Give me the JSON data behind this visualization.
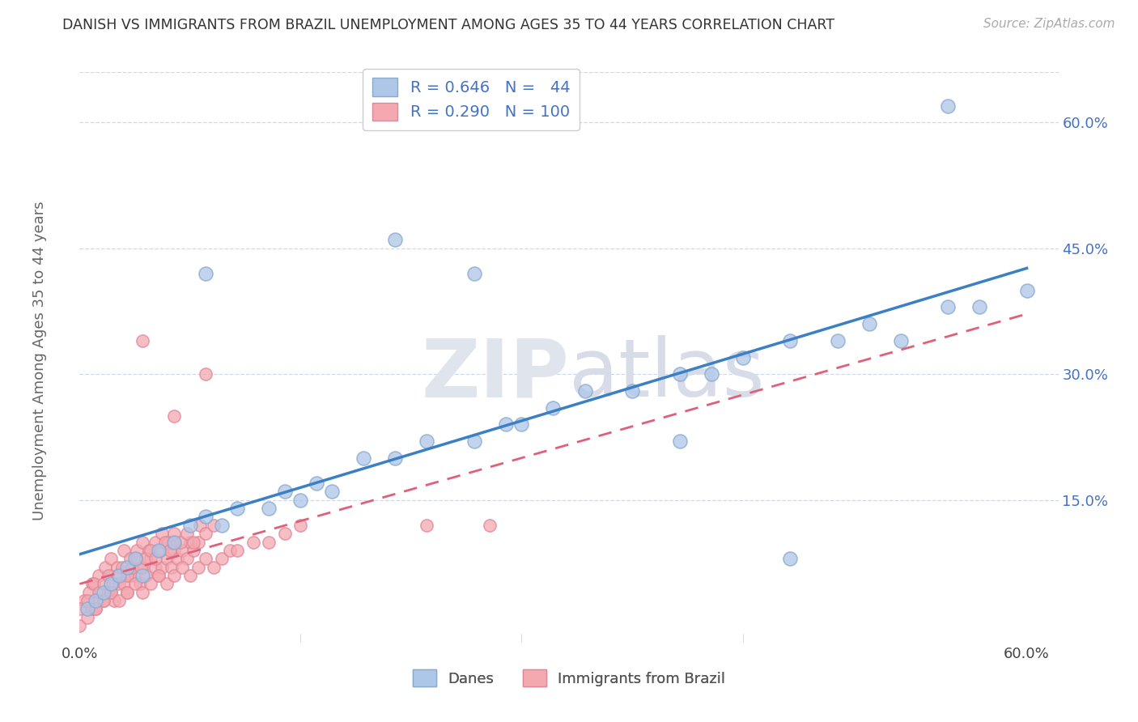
{
  "title": "DANISH VS IMMIGRANTS FROM BRAZIL UNEMPLOYMENT AMONG AGES 35 TO 44 YEARS CORRELATION CHART",
  "source": "Source: ZipAtlas.com",
  "ylabel": "Unemployment Among Ages 35 to 44 years",
  "xlim": [
    0.0,
    0.62
  ],
  "ylim": [
    -0.02,
    0.66
  ],
  "x_ticks": [
    0.0,
    0.6
  ],
  "x_tick_labels": [
    "0.0%",
    "60.0%"
  ],
  "y_ticks": [
    0.15,
    0.3,
    0.45,
    0.6
  ],
  "y_tick_labels": [
    "15.0%",
    "30.0%",
    "45.0%",
    "60.0%"
  ],
  "danes_color": "#aec6e8",
  "danes_edge_color": "#88aacc",
  "brazil_color": "#f4a8b0",
  "brazil_edge_color": "#e08898",
  "danes_line_color": "#3b7fc4",
  "brazil_line_color": "#e0607a",
  "tick_color": "#4472c4",
  "text_color": "#4472c4",
  "grid_color": "#d0d8e8",
  "danes_scatter_x": [
    0.005,
    0.01,
    0.015,
    0.02,
    0.025,
    0.03,
    0.035,
    0.04,
    0.05,
    0.06,
    0.07,
    0.08,
    0.09,
    0.1,
    0.12,
    0.13,
    0.14,
    0.15,
    0.16,
    0.18,
    0.2,
    0.22,
    0.25,
    0.27,
    0.3,
    0.32,
    0.35,
    0.38,
    0.4,
    0.42,
    0.45,
    0.48,
    0.5,
    0.52,
    0.55,
    0.57,
    0.6,
    0.28,
    0.2,
    0.25,
    0.55,
    0.08,
    0.38,
    0.45
  ],
  "danes_scatter_y": [
    0.02,
    0.03,
    0.04,
    0.05,
    0.06,
    0.07,
    0.08,
    0.06,
    0.09,
    0.1,
    0.12,
    0.13,
    0.12,
    0.14,
    0.14,
    0.16,
    0.15,
    0.17,
    0.16,
    0.2,
    0.2,
    0.22,
    0.22,
    0.24,
    0.26,
    0.28,
    0.28,
    0.3,
    0.3,
    0.32,
    0.34,
    0.34,
    0.36,
    0.34,
    0.38,
    0.38,
    0.4,
    0.24,
    0.46,
    0.42,
    0.62,
    0.42,
    0.22,
    0.08
  ],
  "brazil_scatter_x": [
    0.0,
    0.005,
    0.008,
    0.01,
    0.012,
    0.015,
    0.018,
    0.02,
    0.022,
    0.025,
    0.028,
    0.03,
    0.032,
    0.035,
    0.038,
    0.04,
    0.042,
    0.045,
    0.048,
    0.05,
    0.052,
    0.055,
    0.058,
    0.06,
    0.062,
    0.065,
    0.068,
    0.07,
    0.072,
    0.075,
    0.008,
    0.012,
    0.016,
    0.02,
    0.024,
    0.028,
    0.032,
    0.036,
    0.04,
    0.044,
    0.048,
    0.052,
    0.056,
    0.06,
    0.064,
    0.068,
    0.072,
    0.076,
    0.08,
    0.085,
    0.003,
    0.006,
    0.009,
    0.012,
    0.015,
    0.018,
    0.021,
    0.024,
    0.027,
    0.03,
    0.033,
    0.036,
    0.039,
    0.042,
    0.045,
    0.048,
    0.051,
    0.054,
    0.057,
    0.06,
    0.0,
    0.005,
    0.01,
    0.015,
    0.02,
    0.025,
    0.03,
    0.035,
    0.04,
    0.045,
    0.05,
    0.055,
    0.06,
    0.065,
    0.07,
    0.075,
    0.08,
    0.085,
    0.09,
    0.095,
    0.1,
    0.11,
    0.12,
    0.13,
    0.14,
    0.04,
    0.06,
    0.08,
    0.22,
    0.26
  ],
  "brazil_scatter_y": [
    0.0,
    0.01,
    0.02,
    0.02,
    0.03,
    0.03,
    0.04,
    0.04,
    0.03,
    0.05,
    0.05,
    0.04,
    0.06,
    0.06,
    0.05,
    0.07,
    0.06,
    0.08,
    0.07,
    0.06,
    0.07,
    0.08,
    0.07,
    0.09,
    0.08,
    0.09,
    0.08,
    0.1,
    0.09,
    0.1,
    0.05,
    0.06,
    0.07,
    0.08,
    0.07,
    0.09,
    0.08,
    0.09,
    0.1,
    0.09,
    0.1,
    0.11,
    0.1,
    0.11,
    0.1,
    0.11,
    0.1,
    0.12,
    0.11,
    0.12,
    0.03,
    0.04,
    0.05,
    0.04,
    0.05,
    0.06,
    0.05,
    0.06,
    0.07,
    0.06,
    0.07,
    0.08,
    0.07,
    0.08,
    0.09,
    0.08,
    0.09,
    0.1,
    0.09,
    0.1,
    0.02,
    0.03,
    0.02,
    0.03,
    0.04,
    0.03,
    0.04,
    0.05,
    0.04,
    0.05,
    0.06,
    0.05,
    0.06,
    0.07,
    0.06,
    0.07,
    0.08,
    0.07,
    0.08,
    0.09,
    0.09,
    0.1,
    0.1,
    0.11,
    0.12,
    0.34,
    0.25,
    0.3,
    0.12,
    0.12
  ]
}
